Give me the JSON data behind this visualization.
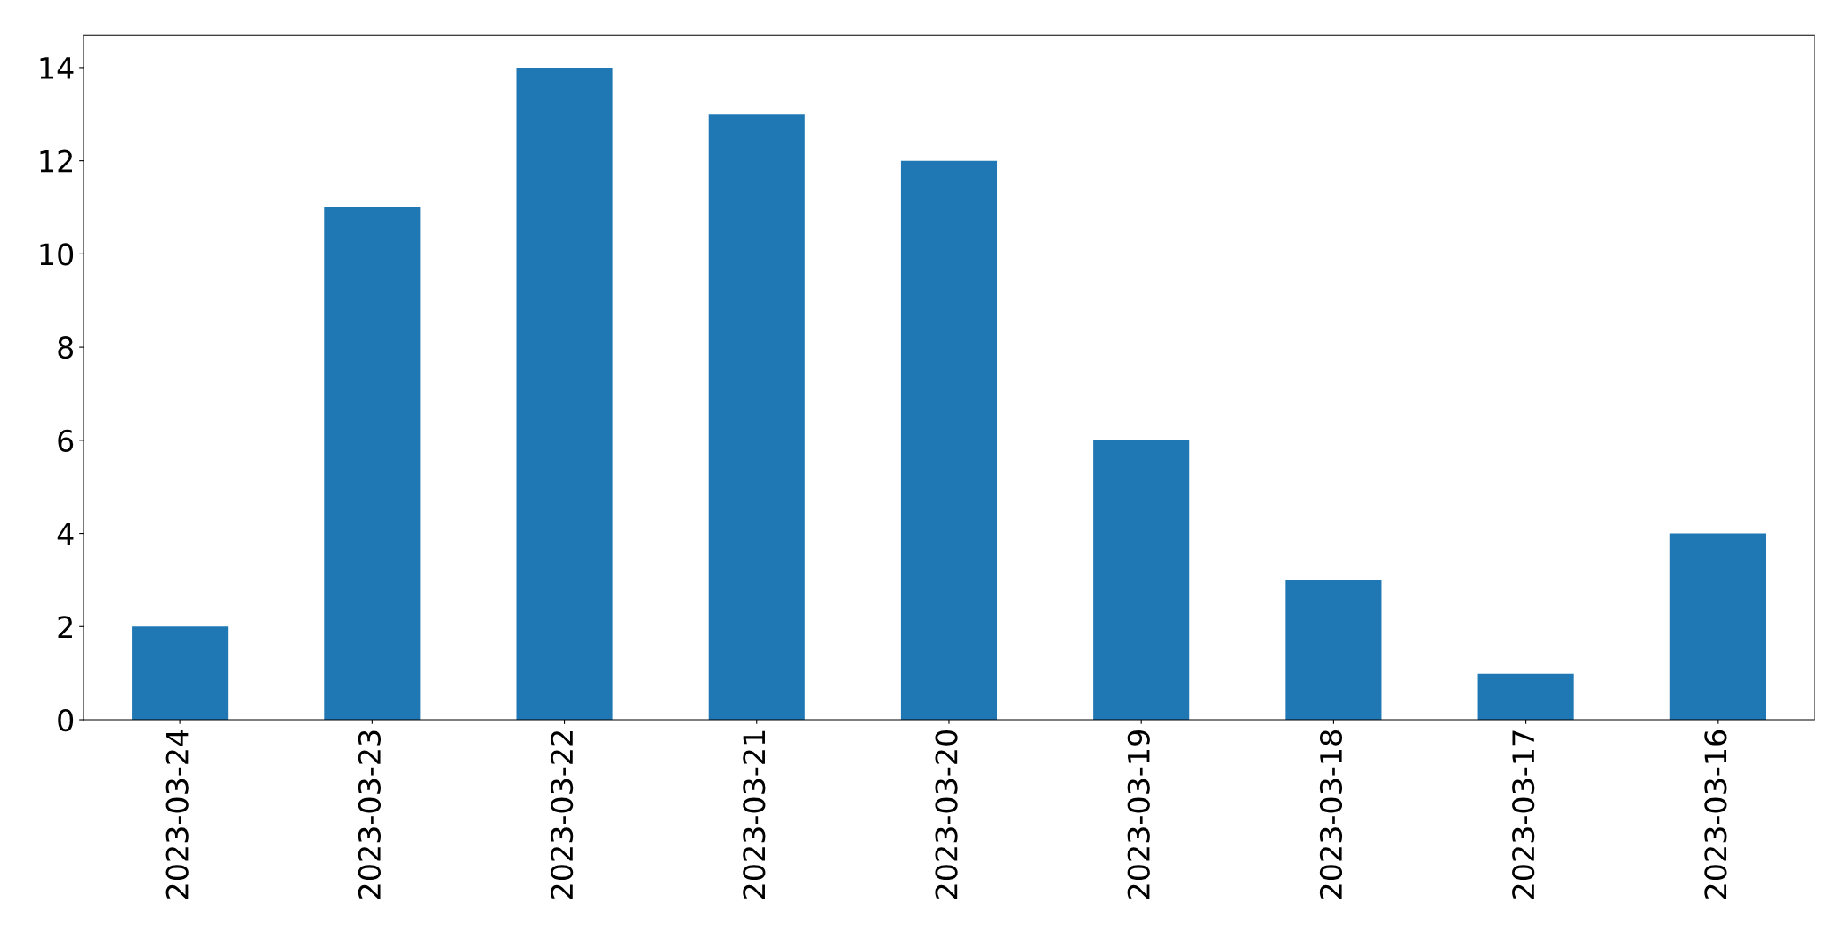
{
  "chart_data": {
    "type": "bar",
    "categories": [
      "2023-03-24",
      "2023-03-23",
      "2023-03-22",
      "2023-03-21",
      "2023-03-20",
      "2023-03-19",
      "2023-03-18",
      "2023-03-17",
      "2023-03-16"
    ],
    "values": [
      2,
      11,
      14,
      13,
      12,
      6,
      3,
      1,
      4
    ],
    "color": "#1f77b4",
    "ylim": [
      0,
      14.7
    ],
    "yticks": [
      0,
      2,
      4,
      6,
      8,
      10,
      12,
      14
    ],
    "grid": false,
    "legend": false
  }
}
